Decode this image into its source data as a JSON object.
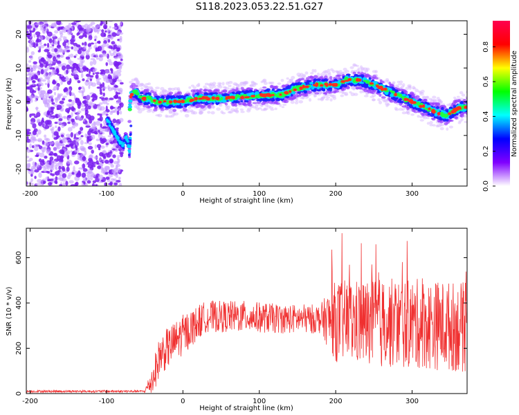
{
  "title": "S118.2023.053.22.51.G27",
  "chart_data": [
    {
      "type": "heatmap",
      "xlabel": "Height of straight line (km)",
      "ylabel": "Frequency (Hz)",
      "xlim": [
        -205,
        372
      ],
      "ylim": [
        -25,
        24
      ],
      "xticks": [
        -200,
        -100,
        0,
        100,
        200,
        300
      ],
      "yticks": [
        -20,
        -10,
        0,
        10,
        20
      ],
      "colorbar": {
        "label": "Normalized spectral amplitude",
        "range": [
          0.0,
          0.95
        ],
        "ticks": [
          0.0,
          0.2,
          0.4,
          0.6,
          0.8
        ],
        "colormap": [
          "#ff0050",
          "#ff0000",
          "#ffff00",
          "#00ff00",
          "#00ffff",
          "#0000ff",
          "#8000ff",
          "#ffffff"
        ]
      },
      "ridge": {
        "x": [
          -95,
          -85,
          -78,
          -72,
          -68,
          -62,
          -55,
          -45,
          -35,
          -20,
          0,
          20,
          50,
          80,
          110,
          130,
          150,
          175,
          200,
          215,
          230,
          250,
          270,
          290,
          310,
          330,
          345,
          360,
          372
        ],
        "y": [
          -6,
          -11,
          -13,
          -9,
          2,
          3,
          1,
          1,
          0,
          0,
          0,
          1,
          1,
          1.5,
          2,
          2,
          4,
          5,
          5,
          6.5,
          6.5,
          5,
          3,
          1,
          -1,
          -3,
          -4,
          -2,
          -1.5
        ]
      },
      "hook": {
        "x": [
          -100,
          -90,
          -82,
          -78,
          -75,
          -72,
          -70,
          -68
        ],
        "y": [
          -5,
          -9,
          -12,
          -13,
          -10,
          -12,
          -15,
          -8
        ]
      },
      "noise_region": [
        -205,
        -80
      ]
    },
    {
      "type": "line",
      "xlabel": "Height of straight line (km)",
      "ylabel": "SNR (10 * v/v)",
      "xlim": [
        -205,
        372
      ],
      "ylim": [
        0,
        730
      ],
      "xticks": [
        -200,
        -100,
        0,
        100,
        200,
        300
      ],
      "yticks": [
        0,
        200,
        400,
        600
      ],
      "color": "#f03030",
      "envelope": {
        "x": [
          -205,
          -50,
          -40,
          -30,
          0,
          30,
          80,
          130,
          180,
          200,
          250,
          300,
          340,
          372
        ],
        "mean": [
          10,
          10,
          60,
          170,
          260,
          340,
          340,
          330,
          330,
          320,
          310,
          310,
          300,
          290
        ],
        "amplitude": [
          5,
          5,
          70,
          90,
          90,
          70,
          70,
          65,
          65,
          180,
          200,
          200,
          200,
          200
        ]
      }
    }
  ]
}
